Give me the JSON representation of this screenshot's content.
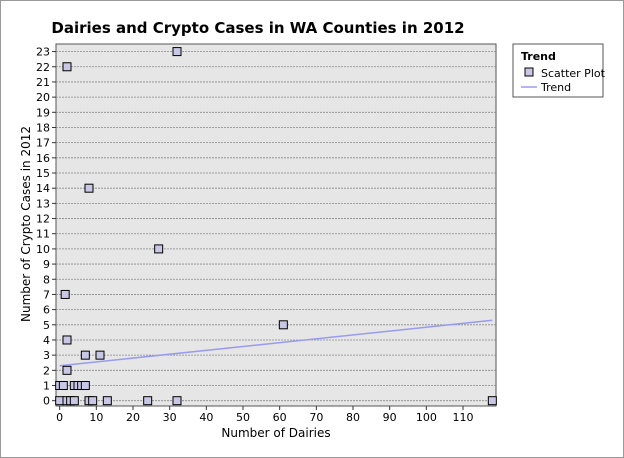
{
  "chart_data": {
    "type": "scatter",
    "title": "Dairies and Crypto Cases in WA Counties in 2012",
    "xlabel": "Number of Dairies",
    "ylabel": "Number of Crypto Cases in 2012",
    "xlim": [
      -1,
      119
    ],
    "ylim": [
      -0.35,
      23.5
    ],
    "x_ticks": [
      0,
      10,
      20,
      30,
      40,
      50,
      60,
      70,
      80,
      90,
      100,
      110
    ],
    "y_ticks": [
      0,
      1,
      2,
      3,
      4,
      5,
      6,
      7,
      8,
      9,
      10,
      11,
      12,
      13,
      14,
      15,
      16,
      17,
      18,
      19,
      20,
      21,
      22,
      23
    ],
    "grid": "horizontal",
    "legend": {
      "title": "Trend",
      "placement": "right",
      "entries": [
        "Scatter Plot",
        "Trend"
      ]
    },
    "series": [
      {
        "name": "Scatter Plot",
        "type": "scatter",
        "points": [
          [
            0,
            0
          ],
          [
            0,
            1
          ],
          [
            1,
            1
          ],
          [
            2,
            0
          ],
          [
            1.5,
            7
          ],
          [
            2,
            22
          ],
          [
            2,
            4
          ],
          [
            2,
            2
          ],
          [
            3,
            0
          ],
          [
            4,
            0
          ],
          [
            4,
            1
          ],
          [
            5,
            1
          ],
          [
            6,
            1
          ],
          [
            7,
            1
          ],
          [
            7,
            3
          ],
          [
            8,
            14
          ],
          [
            8,
            0
          ],
          [
            9,
            0
          ],
          [
            11,
            3
          ],
          [
            13,
            0
          ],
          [
            24,
            0
          ],
          [
            27,
            10
          ],
          [
            32,
            23
          ],
          [
            32,
            0
          ],
          [
            61,
            5
          ],
          [
            118,
            0
          ]
        ]
      },
      {
        "name": "Trend",
        "type": "line",
        "points": [
          [
            0,
            2.3
          ],
          [
            118,
            5.3
          ]
        ]
      }
    ],
    "colors": {
      "plot_background": "#e6e6e6",
      "marker_fill": "#c8c8e6",
      "marker_stroke": "#000000",
      "trend_line": "#9a9af0",
      "grid": "#888888"
    }
  }
}
